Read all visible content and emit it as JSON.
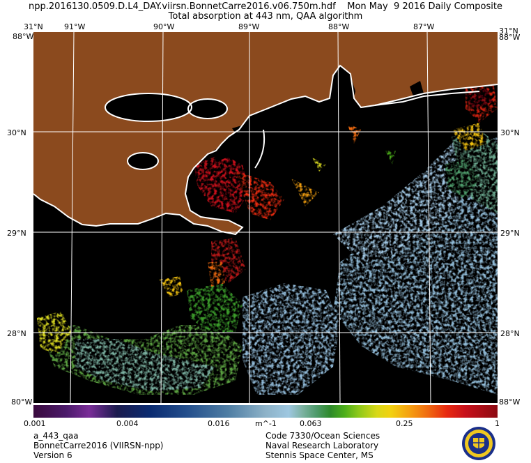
{
  "header": {
    "line1": "npp.2016130.0509.D.L4_DAY.viirsn.BonnetCarre2016.v06.750m.hdf    Mon May  9 2016 Daily Composite",
    "line2": "Total absorption at 443 nm, QAA algorithm"
  },
  "map": {
    "lon_labels": [
      "91°W",
      "90°W",
      "89°W",
      "88°W",
      "87°W"
    ],
    "lat_labels": [
      "30°N",
      "29°N",
      "28°N"
    ],
    "corner_top_left": "31°N",
    "corner_top_right": "31°N",
    "corner_top_left_lon": "88°W",
    "corner_top_right_lon": "88°W",
    "corner_bottom_left": "80°W",
    "corner_bottom_right": "88°W",
    "colors": {
      "land": "#8b4a1e",
      "water_no_data": "#000000",
      "coastline": "#ffffff",
      "graticule": "#ffffff"
    }
  },
  "colorbar": {
    "ticks": [
      "0.001",
      "0.004",
      "0.016",
      "m^-1",
      "0.063",
      "0.25",
      "1"
    ],
    "scale": "log",
    "range": [
      0.001,
      1
    ]
  },
  "footer": {
    "left": [
      "a_443_qaa",
      "BonnetCarre2016 (VIIRSN-npp)",
      "Version 6"
    ],
    "right": [
      "Code 7330/Ocean Sciences",
      "Naval Research Laboratory",
      "Stennis Space Center, MS"
    ]
  }
}
